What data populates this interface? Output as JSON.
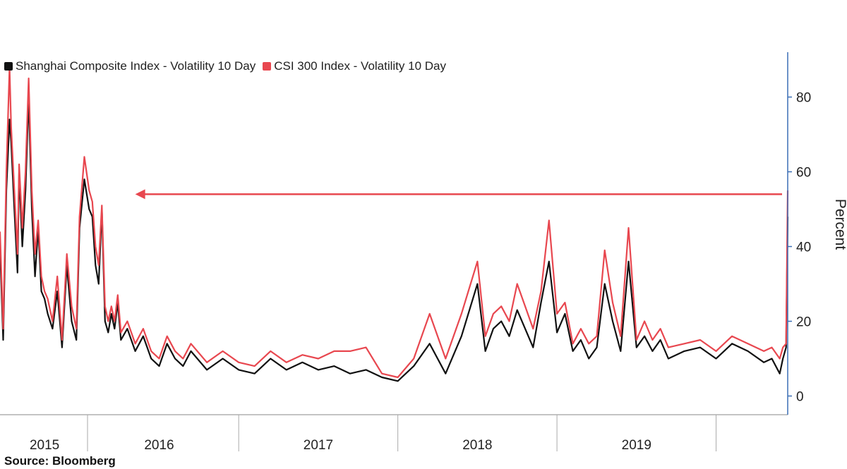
{
  "chart_data": {
    "type": "line",
    "legend": [
      {
        "name": "Shanghai Composite Index - Volatility 10 Day",
        "color": "#111111"
      },
      {
        "name": "CSI 300 Index - Volatility 10 Day",
        "color": "#e8474f"
      }
    ],
    "ylabel": "Percent",
    "ylim": [
      -5,
      92
    ],
    "yticks": [
      0,
      20,
      40,
      60,
      80
    ],
    "xlim": [
      2015.0,
      2019.95
    ],
    "year_labels": [
      {
        "label": "2015",
        "pos": 2015.28
      },
      {
        "label": "2016",
        "pos": 2016.0
      },
      {
        "label": "2017",
        "pos": 2017.0
      },
      {
        "label": "2018",
        "pos": 2018.0
      },
      {
        "label": "2019",
        "pos": 2019.0
      }
    ],
    "x_separators": [
      2015.55,
      2016.5,
      2017.5,
      2018.5,
      2019.5
    ],
    "annotation": {
      "type": "arrow",
      "from_x": 2019.95,
      "to_x": 2015.85,
      "y": 54,
      "color": "#e8474f"
    },
    "series": [
      {
        "name": "Shanghai Composite Index - Volatility 10 Day",
        "color": "#111111",
        "x": [
          2015.0,
          2015.02,
          2015.04,
          2015.06,
          2015.07,
          2015.09,
          2015.11,
          2015.12,
          2015.14,
          2015.16,
          2015.18,
          2015.2,
          2015.22,
          2015.24,
          2015.26,
          2015.28,
          2015.3,
          2015.33,
          2015.36,
          2015.39,
          2015.42,
          2015.45,
          2015.48,
          2015.5,
          2015.53,
          2015.56,
          2015.58,
          2015.6,
          2015.62,
          2015.64,
          2015.66,
          2015.68,
          2015.7,
          2015.72,
          2015.74,
          2015.76,
          2015.8,
          2015.85,
          2015.9,
          2015.95,
          2016.0,
          2016.05,
          2016.1,
          2016.15,
          2016.2,
          2016.3,
          2016.4,
          2016.5,
          2016.6,
          2016.7,
          2016.8,
          2016.9,
          2017.0,
          2017.1,
          2017.2,
          2017.3,
          2017.4,
          2017.5,
          2017.6,
          2017.7,
          2017.8,
          2017.9,
          2018.0,
          2018.05,
          2018.1,
          2018.15,
          2018.2,
          2018.25,
          2018.3,
          2018.35,
          2018.4,
          2018.45,
          2018.5,
          2018.55,
          2018.6,
          2018.65,
          2018.7,
          2018.75,
          2018.8,
          2018.85,
          2018.9,
          2018.95,
          2019.0,
          2019.05,
          2019.1,
          2019.15,
          2019.2,
          2019.3,
          2019.4,
          2019.5,
          2019.6,
          2019.7,
          2019.8,
          2019.85,
          2019.9,
          2019.92,
          2019.94,
          2019.95
        ],
        "y": [
          40,
          15,
          55,
          74,
          68,
          50,
          33,
          60,
          40,
          55,
          80,
          50,
          32,
          45,
          28,
          26,
          22,
          18,
          28,
          13,
          35,
          20,
          15,
          45,
          58,
          50,
          48,
          35,
          30,
          50,
          20,
          17,
          22,
          18,
          25,
          15,
          18,
          12,
          16,
          10,
          8,
          14,
          10,
          8,
          12,
          7,
          10,
          7,
          6,
          10,
          7,
          9,
          7,
          8,
          6,
          7,
          5,
          4,
          8,
          14,
          6,
          16,
          30,
          12,
          18,
          20,
          16,
          23,
          18,
          13,
          25,
          36,
          17,
          22,
          12,
          15,
          10,
          13,
          30,
          20,
          12,
          36,
          13,
          16,
          12,
          15,
          10,
          12,
          13,
          10,
          14,
          12,
          9,
          10,
          6,
          10,
          13,
          48
        ]
      },
      {
        "name": "CSI 300 Index - Volatility 10 Day",
        "color": "#e8474f",
        "x": [
          2015.0,
          2015.02,
          2015.04,
          2015.06,
          2015.07,
          2015.09,
          2015.11,
          2015.12,
          2015.14,
          2015.16,
          2015.18,
          2015.2,
          2015.22,
          2015.24,
          2015.26,
          2015.28,
          2015.3,
          2015.33,
          2015.36,
          2015.39,
          2015.42,
          2015.45,
          2015.48,
          2015.5,
          2015.53,
          2015.56,
          2015.58,
          2015.6,
          2015.62,
          2015.64,
          2015.66,
          2015.68,
          2015.7,
          2015.72,
          2015.74,
          2015.76,
          2015.8,
          2015.85,
          2015.9,
          2015.95,
          2016.0,
          2016.05,
          2016.1,
          2016.15,
          2016.2,
          2016.3,
          2016.4,
          2016.5,
          2016.6,
          2016.7,
          2016.8,
          2016.9,
          2017.0,
          2017.1,
          2017.2,
          2017.3,
          2017.4,
          2017.5,
          2017.6,
          2017.7,
          2017.8,
          2017.9,
          2018.0,
          2018.05,
          2018.1,
          2018.15,
          2018.2,
          2018.25,
          2018.3,
          2018.35,
          2018.4,
          2018.45,
          2018.5,
          2018.55,
          2018.6,
          2018.65,
          2018.7,
          2018.75,
          2018.8,
          2018.85,
          2018.9,
          2018.95,
          2019.0,
          2019.05,
          2019.1,
          2019.15,
          2019.2,
          2019.3,
          2019.4,
          2019.5,
          2019.6,
          2019.7,
          2019.8,
          2019.85,
          2019.9,
          2019.92,
          2019.94,
          2019.95
        ],
        "y": [
          44,
          18,
          60,
          88,
          72,
          55,
          38,
          62,
          45,
          60,
          85,
          55,
          38,
          47,
          32,
          28,
          26,
          20,
          32,
          15,
          38,
          24,
          18,
          48,
          64,
          55,
          52,
          40,
          35,
          51,
          24,
          20,
          24,
          20,
          27,
          17,
          20,
          14,
          18,
          12,
          10,
          16,
          12,
          10,
          14,
          9,
          12,
          9,
          8,
          12,
          9,
          11,
          10,
          12,
          12,
          13,
          6,
          5,
          10,
          22,
          10,
          22,
          36,
          16,
          22,
          24,
          20,
          30,
          24,
          18,
          28,
          47,
          22,
          25,
          14,
          18,
          14,
          16,
          39,
          25,
          16,
          45,
          15,
          20,
          15,
          18,
          13,
          14,
          15,
          12,
          16,
          14,
          12,
          13,
          10,
          13,
          14,
          55
        ]
      }
    ]
  },
  "source_text": "Source:  Bloomberg"
}
